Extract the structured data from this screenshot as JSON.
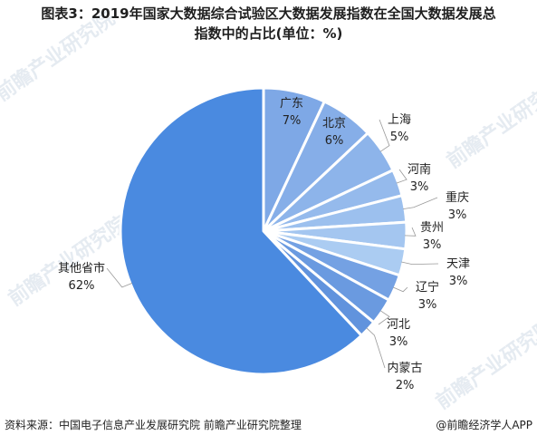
{
  "chart_data": {
    "type": "pie",
    "title": "图表3：2019年国家大数据综合试验区大数据发展指数在全国大数据发展总指数中的占比(单位：%)",
    "title_lines": [
      "图表3：2019年国家大数据综合试验区大数据发展指数在全国大数据发展总",
      "指数中的占比(单位：%)"
    ],
    "unit": "%",
    "start_angle": "12 o'clock",
    "direction": "clockwise",
    "slices": [
      {
        "label": "广东",
        "value": 7,
        "value_text": "7%",
        "color": "#7ea8e6"
      },
      {
        "label": "北京",
        "value": 6,
        "value_text": "6%",
        "color": "#86aee8"
      },
      {
        "label": "上海",
        "value": 5,
        "value_text": "5%",
        "color": "#8db4ea"
      },
      {
        "label": "河南",
        "value": 3,
        "value_text": "3%",
        "color": "#95baec"
      },
      {
        "label": "重庆",
        "value": 3,
        "value_text": "3%",
        "color": "#9cc0ee"
      },
      {
        "label": "贵州",
        "value": 3,
        "value_text": "3%",
        "color": "#a4c6f0"
      },
      {
        "label": "天津",
        "value": 3,
        "value_text": "3%",
        "color": "#abccf2"
      },
      {
        "label": "辽宁",
        "value": 3,
        "value_text": "3%",
        "color": "#74a1e3"
      },
      {
        "label": "河北",
        "value": 3,
        "value_text": "3%",
        "color": "#6a9ae0"
      },
      {
        "label": "内蒙古",
        "value": 2,
        "value_text": "2%",
        "color": "#6193dd"
      },
      {
        "label": "其他省市",
        "value": 62,
        "value_text": "62%",
        "color": "#4a8ae0"
      }
    ]
  },
  "footer": {
    "source": "资料来源：中国电子信息产业发展研究院 前瞻产业研究院整理",
    "brand": "@前瞻经济学人APP"
  },
  "watermark": {
    "text": "前瞻产业研究院"
  }
}
